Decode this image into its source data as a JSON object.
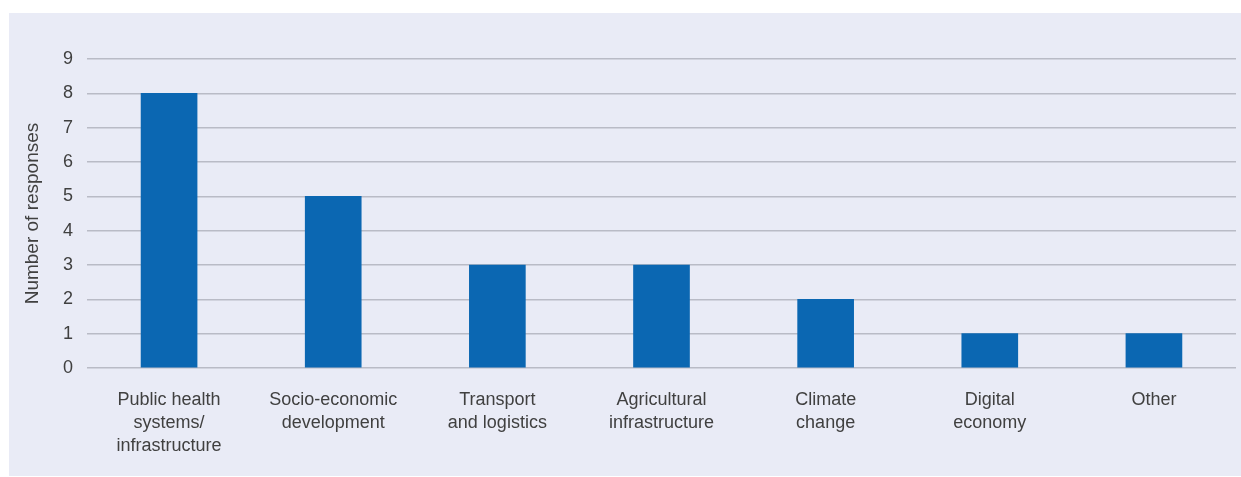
{
  "chart_data": {
    "type": "bar",
    "ylabel": "Number of responses",
    "categories": [
      "Public health systems/infrastructure",
      "Socio-economic development",
      "Transport and logistics",
      "Agricultural infrastructure",
      "Climate change",
      "Digital economy",
      "Other"
    ],
    "values": [
      8,
      5,
      3,
      3,
      2,
      1,
      1
    ],
    "color": "#0b67b2",
    "ylim": [
      0,
      9
    ],
    "yticks": [
      0,
      1,
      2,
      3,
      4,
      5,
      6,
      7,
      8,
      9
    ],
    "grid": "y"
  }
}
